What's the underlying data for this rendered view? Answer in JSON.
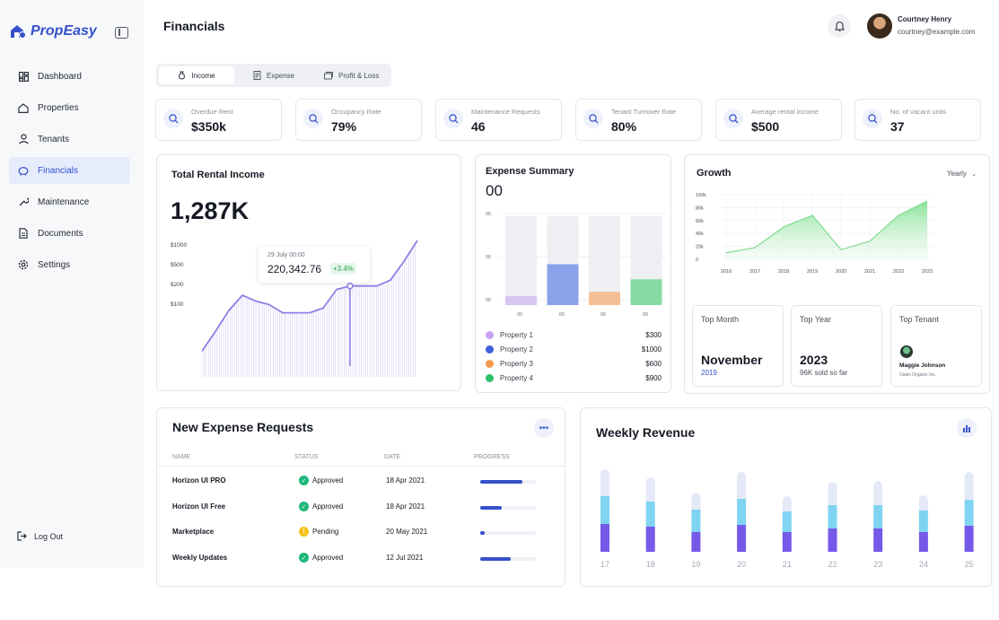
{
  "app": {
    "name": "PropEasy"
  },
  "sidebar": {
    "items": [
      {
        "label": "Dashboard",
        "icon": "dashboard-icon"
      },
      {
        "label": "Properties",
        "icon": "home-icon"
      },
      {
        "label": "Tenants",
        "icon": "user-icon"
      },
      {
        "label": "Financials",
        "icon": "piggy-bank-icon",
        "active": true
      },
      {
        "label": "Maintenance",
        "icon": "wrench-icon"
      },
      {
        "label": "Documents",
        "icon": "document-icon"
      },
      {
        "label": "Settings",
        "icon": "gear-icon"
      }
    ],
    "logout": "Log Out"
  },
  "header": {
    "title": "Financials",
    "user": {
      "name": "Courtney Henry",
      "email": "courtney@example.com"
    }
  },
  "tabs": [
    {
      "label": "Income",
      "active": true
    },
    {
      "label": "Expense"
    },
    {
      "label": "Profit & Loss"
    }
  ],
  "stats": [
    {
      "label": "Overdue Rent",
      "value": "$350k"
    },
    {
      "label": "Occupancy Rate",
      "value": "79%"
    },
    {
      "label": "Maintenance Requests",
      "value": "46"
    },
    {
      "label": "Tenant Turnover Rate",
      "value": "80%"
    },
    {
      "label": "Average rental income",
      "value": "$500"
    },
    {
      "label": "No. of vacant units",
      "value": "37"
    }
  ],
  "total_rental": {
    "title": "Total Rental Income",
    "value": "1,287K",
    "y_ticks": [
      "$1000",
      "$500",
      "$200",
      "$100"
    ],
    "tooltip": {
      "date": "29 July 00:00",
      "value": "220,342.76",
      "delta": "+3.4%"
    }
  },
  "expense_summary": {
    "title": "Expense Summary",
    "value": "00",
    "y_ticks": [
      "00",
      "00",
      "00"
    ],
    "x_ticks": [
      "00",
      "00",
      "00",
      "00"
    ],
    "legend": [
      {
        "label": "Property 1",
        "amount": "$300",
        "color": "#c9a3f0"
      },
      {
        "label": "Property 2",
        "amount": "$1000",
        "color": "#3f60d8"
      },
      {
        "label": "Property 3",
        "amount": "$600",
        "color": "#f39a4d"
      },
      {
        "label": "Property 4",
        "amount": "$900",
        "color": "#2fbf6a"
      }
    ]
  },
  "growth": {
    "title": "Growth",
    "period": "Yearly",
    "top_month": {
      "label": "Top Month",
      "value": "November",
      "sub": "2019"
    },
    "top_year": {
      "label": "Top Year",
      "value": "2023",
      "sub": "96K sold so far"
    },
    "top_tenant": {
      "label": "Top Tenant",
      "name": "Maggie Johnson",
      "company": "Oasis Organic Inc."
    }
  },
  "expense_requests": {
    "title": "New Expense Requests",
    "columns": [
      "NAME",
      "STATUS",
      "DATE",
      "PROGRESS"
    ],
    "rows": [
      {
        "name": "Horizon UI PRO",
        "status": "Approved",
        "date": "18 Apr 2021",
        "progress": 0.75
      },
      {
        "name": "Horizon UI Free",
        "status": "Approved",
        "date": "18 Apr 2021",
        "progress": 0.38
      },
      {
        "name": "Marketplace",
        "status": "Pending",
        "date": "20 May 2021",
        "progress": 0.08
      },
      {
        "name": "Weekly Updates",
        "status": "Approved",
        "date": "12 Jul 2021",
        "progress": 0.55
      }
    ]
  },
  "weekly_revenue": {
    "title": "Weekly Revenue"
  },
  "chart_data": [
    {
      "type": "area",
      "title": "Total Rental Income",
      "y_ticks": [
        "$1000",
        "$500",
        "$200",
        "$100"
      ],
      "series": [
        {
          "values": [
            0.05,
            0.22,
            0.4,
            0.53,
            0.48,
            0.45,
            0.38,
            0.38,
            0.38,
            0.42,
            0.58,
            0.61,
            0.61,
            0.61,
            0.66,
            0.82,
            1.0
          ]
        }
      ],
      "highlight": {
        "label": "29 July 00:00",
        "value": "220,342.76",
        "delta": "+3.4%"
      }
    },
    {
      "type": "bar",
      "title": "Expense Summary",
      "categories": [
        "Property 1",
        "Property 2",
        "Property 3",
        "Property 4"
      ],
      "values": [
        300,
        1000,
        600,
        900
      ],
      "relative_heights": [
        0.1,
        0.46,
        0.15,
        0.29
      ]
    },
    {
      "type": "area",
      "title": "Growth",
      "x": [
        "2016",
        "2017",
        "2018",
        "2019",
        "2020",
        "2021",
        "2022",
        "2023"
      ],
      "y_ticks": [
        "100k",
        "80k",
        "60k",
        "40k",
        "20k",
        "0"
      ],
      "series": [
        {
          "values": [
            10,
            18,
            50,
            68,
            15,
            28,
            68,
            90
          ]
        }
      ],
      "ylim": [
        0,
        100
      ]
    },
    {
      "type": "bar",
      "title": "Weekly Revenue",
      "categories": [
        "17",
        "18",
        "19",
        "20",
        "21",
        "22",
        "23",
        "24",
        "25"
      ],
      "series": [
        {
          "values": [
            31,
            28,
            22,
            30,
            22,
            26,
            26,
            22,
            29
          ]
        },
        {
          "values": [
            31,
            28,
            25,
            29,
            23,
            26,
            26,
            24,
            29
          ]
        },
        {
          "values": [
            30,
            27,
            19,
            30,
            17,
            26,
            27,
            17,
            31
          ]
        }
      ],
      "colors": [
        "#7659e8",
        "#7fd4f2",
        "#e4e9f7"
      ]
    }
  ]
}
